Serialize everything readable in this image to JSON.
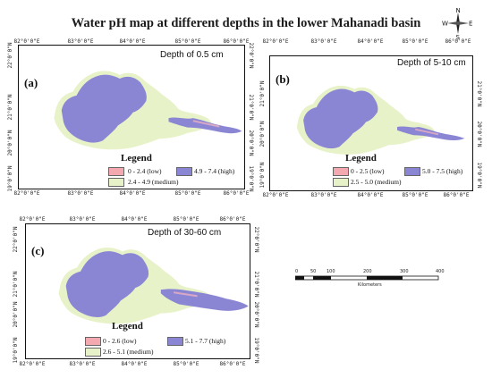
{
  "title": "Water pH map at different depths in the lower Mahanadi basin",
  "compass": {
    "n": "N",
    "s": "S",
    "e": "E",
    "w": "W"
  },
  "colors": {
    "low": "#f4a9b1",
    "medium": "#e8f2c9",
    "high": "#8b86d4",
    "river": "#d8a7c6"
  },
  "lon_ticks": [
    "82°0'0\"E",
    "83°0'0\"E",
    "84°0'0\"E",
    "85°0'0\"E",
    "86°0'0\"E"
  ],
  "lat_ticks": [
    "22°0'0\"N",
    "21°0'0\"N",
    "20°0'0\"N",
    "19°0'0\"N"
  ],
  "panels": [
    {
      "label": "(a)",
      "depth": "Depth of 0.5 cm",
      "legend_title": "Legend",
      "legend": {
        "low": "0 - 2.4 (low)",
        "high": "4.9 - 7.4 (high)",
        "medium": "2.4 - 4.9 (medium)"
      }
    },
    {
      "label": "(b)",
      "depth": "Depth of 5-10 cm",
      "legend_title": "Legend",
      "legend": {
        "low": "0 - 2.5 (low)",
        "high": "5.0 - 7.5 (high)",
        "medium": "2.5 - 5.0 (medium)"
      }
    },
    {
      "label": "(c)",
      "depth": "Depth of 30-60 cm",
      "legend_title": "Legend",
      "legend": {
        "low": "0 - 2.6 (low)",
        "high": "5.1 - 7.7 (high)",
        "medium": "2.6 - 5.1 (medium)"
      }
    }
  ],
  "scale": {
    "ticks": [
      "0",
      "50",
      "100",
      "200",
      "300",
      "400"
    ],
    "unit": "Kilometers"
  }
}
